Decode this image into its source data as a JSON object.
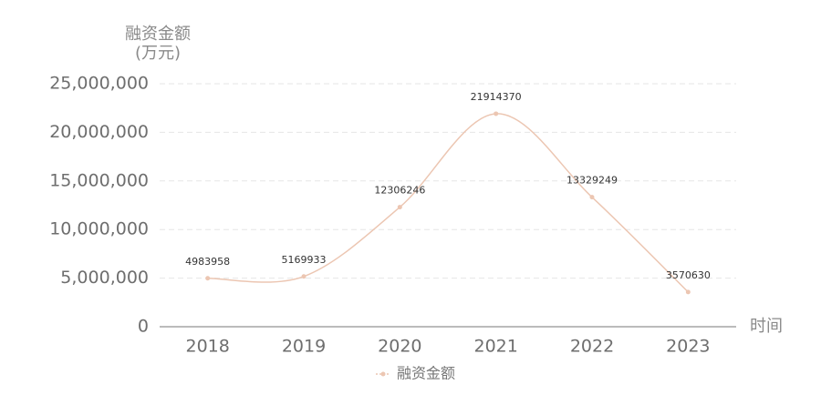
{
  "chart_data": {
    "type": "line",
    "y_axis_title": [
      "融资金额",
      "(万元)"
    ],
    "x_axis_title": "时间",
    "categories": [
      "2018",
      "2019",
      "2020",
      "2021",
      "2022",
      "2023"
    ],
    "series": [
      {
        "name": "融资金额",
        "color": "#ecc6b2",
        "values": [
          4983958,
          5169933,
          12306246,
          21914370,
          13329249,
          3570630
        ]
      }
    ],
    "ylim": [
      0,
      25000000
    ],
    "yticks": [
      0,
      {
        "value": 5000000,
        "label": "5,000,000"
      },
      {
        "value": 10000000,
        "label": "10,000,000"
      },
      {
        "value": 15000000,
        "label": "15,000,000"
      },
      {
        "value": 20000000,
        "label": "20,000,000"
      },
      {
        "value": 25000000,
        "label": "25,000,000"
      }
    ],
    "grid": true,
    "smooth": true,
    "legend": "bottom"
  }
}
